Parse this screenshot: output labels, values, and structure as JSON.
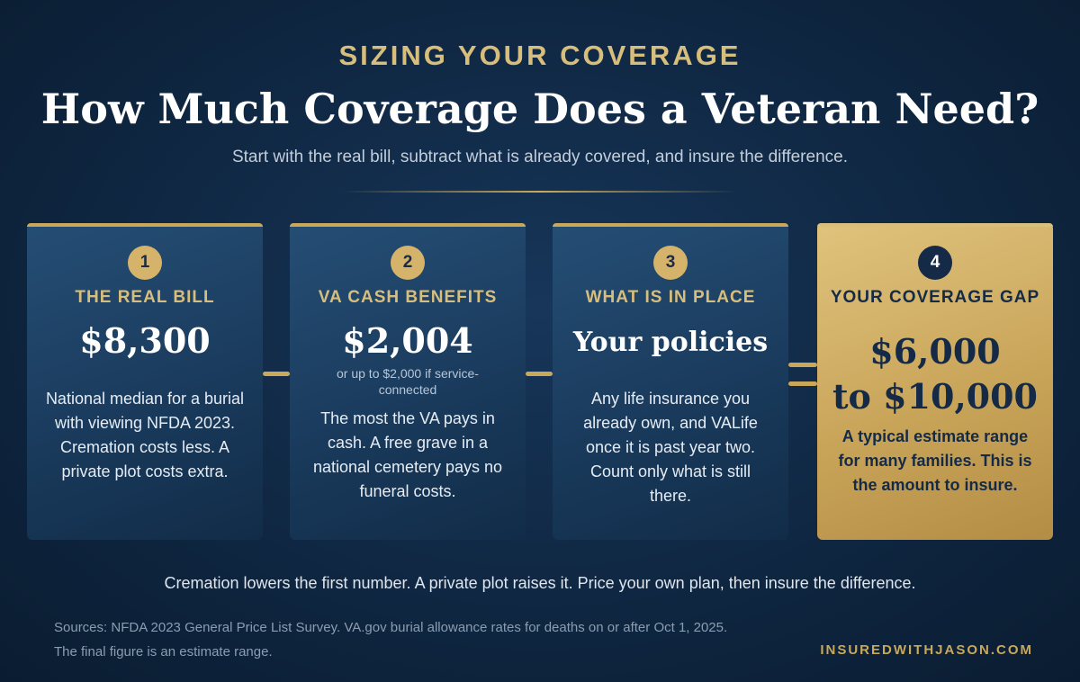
{
  "header": {
    "eyebrow": "SIZING YOUR COVERAGE",
    "title": "How Much Coverage Does a Veteran Need?",
    "subtitle": "Start with the real bill, subtract what is already covered, and insure the difference."
  },
  "steps": [
    {
      "number": "1",
      "label": "THE REAL BILL",
      "amount": "$8,300",
      "note": "",
      "description": "National median for a burial with viewing NFDA 2023. Cremation costs less. A private plot costs extra."
    },
    {
      "number": "2",
      "label": "VA CASH BENEFITS",
      "amount": "$2,004",
      "note": "or up to $2,000 if service-connected",
      "description": "The most the VA pays in cash. A free grave in a national cemetery pays no funeral costs."
    },
    {
      "number": "3",
      "label": "WHAT IS IN PLACE",
      "amount": "Your policies",
      "note": "",
      "description": "Any life insurance you already own, and VALife once it is past year two. Count only what is still there."
    },
    {
      "number": "4",
      "label": "YOUR COVERAGE GAP",
      "amount_line1": "$6,000",
      "amount_line2": "to $10,000",
      "description": "A typical estimate range for many families. This is the amount to insure."
    }
  ],
  "footer": {
    "note": "Cremation lowers the first number. A private plot raises it. Price your own plan, then insure the difference.",
    "sources_line1": "Sources: NFDA 2023 General Price List Survey. VA.gov burial allowance rates for deaths on or after Oct 1, 2025.",
    "sources_line2": "The final figure is an estimate range.",
    "site": "INSUREDWITHJASON.COM"
  },
  "colors": {
    "background": "#0f2742",
    "gold": "#c9a85a",
    "card": "#1a3b5d",
    "gap_card": "#c9a55a"
  }
}
